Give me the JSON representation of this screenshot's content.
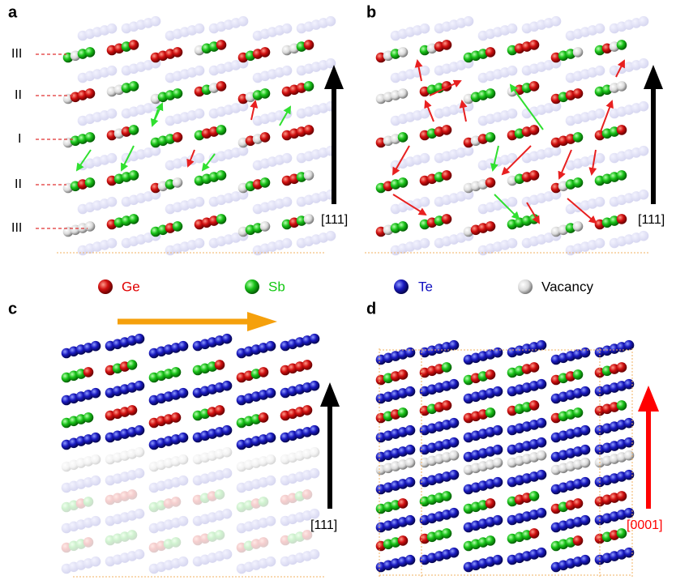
{
  "panels": [
    {
      "label": "a",
      "row_labels": [
        "III",
        "II",
        "I",
        "II",
        "III"
      ],
      "axis_label": "[111]"
    },
    {
      "label": "b",
      "axis_label": "[111]"
    },
    {
      "label": "c",
      "axis_label": "[111]"
    },
    {
      "label": "d",
      "axis_label": "[0001]"
    }
  ],
  "legend": [
    {
      "label": "Ge"
    },
    {
      "label": "Sb"
    },
    {
      "label": "Te"
    },
    {
      "label": "Vacancy"
    }
  ]
}
